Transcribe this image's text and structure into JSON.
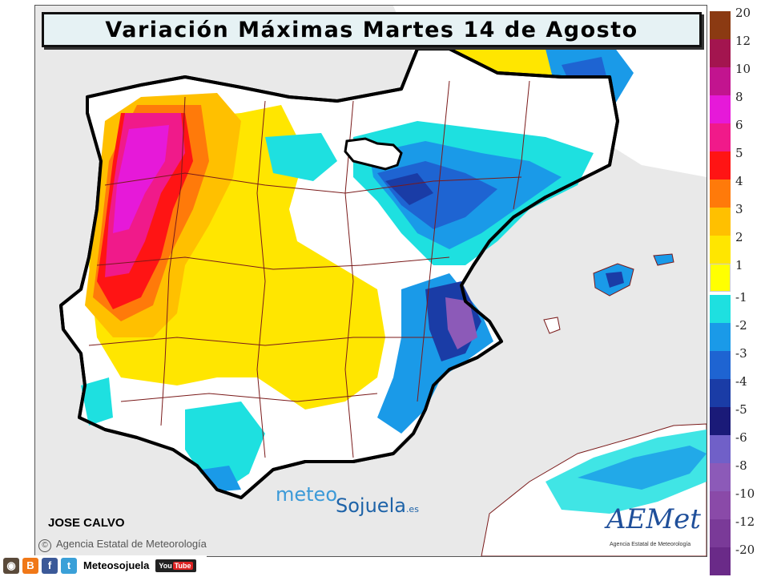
{
  "title": "Variación Máximas Martes 14 de Agosto",
  "legend": {
    "positive": [
      {
        "label": "20",
        "color": "#8b3a12"
      },
      {
        "label": "12",
        "color": "#a3154f"
      },
      {
        "label": "10",
        "color": "#c2148f"
      },
      {
        "label": "8",
        "color": "#e619d9"
      },
      {
        "label": "6",
        "color": "#f01a8a"
      },
      {
        "label": "5",
        "color": "#ff1414"
      },
      {
        "label": "4",
        "color": "#ff7a0a"
      },
      {
        "label": "3",
        "color": "#ffc000"
      },
      {
        "label": "2",
        "color": "#ffe600"
      },
      {
        "label": "1",
        "color": "#ffffff"
      }
    ],
    "negative": [
      {
        "label": "-1",
        "color": "#1ee0e0"
      },
      {
        "label": "-2",
        "color": "#1a9ae8"
      },
      {
        "label": "-3",
        "color": "#1e64d2"
      },
      {
        "label": "-4",
        "color": "#1a3ca6"
      },
      {
        "label": "-5",
        "color": "#1a1a78"
      },
      {
        "label": "-6",
        "color": "#7060c8"
      },
      {
        "label": "-8",
        "color": "#8c5ab8"
      },
      {
        "label": "-10",
        "color": "#8a4aa8"
      },
      {
        "label": "-12",
        "color": "#7a3a98"
      },
      {
        "label": "-20",
        "color": "#6a2a88"
      }
    ]
  },
  "author": "JOSE CALVO",
  "agency": "Agencia Estatal de Meteorología",
  "copyright_symbol": "©",
  "watermark": {
    "meteo": "meteo",
    "sojuela": "Sojuela",
    "tld": ".es"
  },
  "logo": {
    "name": "AEMet",
    "subtitle": "Agencia Estatal de Meteorología"
  },
  "social": {
    "name": "Meteosojuela",
    "youtube_you": "You",
    "youtube_tube": "Tube"
  },
  "map_colors": {
    "sea": "#e9e9e9",
    "land_neutral": "#ffffff",
    "border": "#000000",
    "province": "#7a1a1a"
  }
}
